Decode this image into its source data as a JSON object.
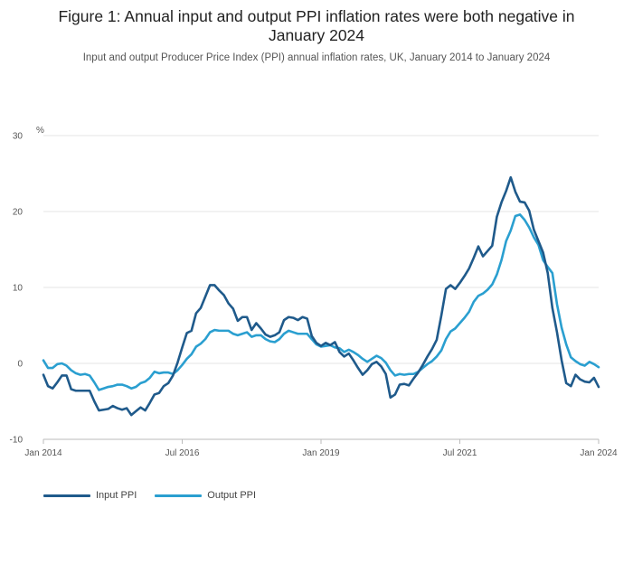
{
  "header": {
    "title_line1": "Figure 1: Annual input and output PPI inflation rates were both negative in",
    "title_line2": "January 2024",
    "subtitle": "Input and output Producer Price Index (PPI) annual inflation rates, UK, January 2014 to January 2024"
  },
  "colors": {
    "input": "#1f5a8b",
    "output": "#2a9fd0",
    "grid": "#e5e5e5",
    "axis": "#bbbbbb"
  },
  "chart_data": {
    "type": "line",
    "title": "Figure 1: Annual input and output PPI inflation rates were both negative in January 2024",
    "subtitle": "Input and output Producer Price Index (PPI) annual inflation rates, UK, January 2014 to January 2024",
    "ylabel": "%",
    "xlabel": "",
    "ylim": [
      -10,
      30
    ],
    "yticks": [
      -10,
      0,
      10,
      20,
      30
    ],
    "ytick_labels": [
      "-10",
      "0",
      "10",
      "20",
      "30"
    ],
    "x_start": "Jan 2014",
    "x_end": "Jan 2024",
    "x_count": 121,
    "xticks": [
      {
        "index": 0,
        "label": "Jan 2014"
      },
      {
        "index": 30,
        "label": "Jul 2016"
      },
      {
        "index": 60,
        "label": "Jan 2019"
      },
      {
        "index": 90,
        "label": "Jul 2021"
      },
      {
        "index": 120,
        "label": "Jan 2024"
      }
    ],
    "legend_position": "bottom-left",
    "grid": true,
    "series": [
      {
        "name": "Input PPI",
        "color": "#1f5a8b",
        "values": [
          -1.5,
          -3,
          -3.3,
          -2.5,
          -1.6,
          -1.6,
          -3.4,
          -3.6,
          -3.6,
          -3.6,
          -3.6,
          -5,
          -6.2,
          -6.1,
          -6,
          -5.6,
          -5.9,
          -6.1,
          -5.9,
          -6.8,
          -6.3,
          -5.8,
          -6.2,
          -5.2,
          -4.1,
          -3.9,
          -3,
          -2.6,
          -1.6,
          0.1,
          2.1,
          4,
          4.3,
          6.6,
          7.3,
          8.8,
          10.3,
          10.3,
          9.6,
          9,
          7.9,
          7.2,
          5.6,
          6.1,
          6.1,
          4.4,
          5.3,
          4.6,
          3.8,
          3.5,
          3.7,
          4.1,
          5.7,
          6.1,
          6,
          5.7,
          6.1,
          5.9,
          3.6,
          2.7,
          2.3,
          2.7,
          2.4,
          2.8,
          1.5,
          0.9,
          1.3,
          0.4,
          -0.6,
          -1.5,
          -0.9,
          -0.1,
          0.2,
          -0.4,
          -1.4,
          -4.5,
          -4.1,
          -2.8,
          -2.7,
          -2.9,
          -2,
          -1.2,
          -0.2,
          0.9,
          1.9,
          3.1,
          6.3,
          9.8,
          10.3,
          9.8,
          10.6,
          11.5,
          12.5,
          13.9,
          15.4,
          14.1,
          14.8,
          15.5,
          19.3,
          21.2,
          22.7,
          24.5,
          22.6,
          21.3,
          21.2,
          20.1,
          17.6,
          16.1,
          14.6,
          11.9,
          7.3,
          4.1,
          0.4,
          -2.6,
          -3,
          -1.5,
          -2.1,
          -2.4,
          -2.5,
          -1.9,
          -3.1
        ]
      },
      {
        "name": "Output PPI",
        "color": "#2a9fd0",
        "values": [
          0.4,
          -0.6,
          -0.6,
          -0.1,
          0,
          -0.3,
          -0.9,
          -1.3,
          -1.5,
          -1.4,
          -1.6,
          -2.5,
          -3.5,
          -3.3,
          -3.1,
          -3,
          -2.8,
          -2.8,
          -3,
          -3.3,
          -3.1,
          -2.6,
          -2.4,
          -1.9,
          -1.1,
          -1.3,
          -1.2,
          -1.2,
          -1.4,
          -0.9,
          -0.2,
          0.6,
          1.2,
          2.2,
          2.6,
          3.2,
          4.1,
          4.4,
          4.3,
          4.3,
          4.3,
          3.9,
          3.7,
          3.9,
          4.1,
          3.5,
          3.7,
          3.7,
          3.2,
          2.9,
          2.8,
          3.2,
          3.9,
          4.3,
          4.1,
          3.9,
          3.9,
          3.9,
          3.2,
          2.5,
          2.2,
          2.3,
          2.4,
          2.1,
          2,
          1.5,
          1.8,
          1.5,
          1.1,
          0.6,
          0.2,
          0.6,
          1,
          0.7,
          0.1,
          -0.9,
          -1.6,
          -1.4,
          -1.5,
          -1.4,
          -1.4,
          -1.1,
          -0.6,
          -0.1,
          0.3,
          0.9,
          1.7,
          3.2,
          4.2,
          4.6,
          5.3,
          6,
          6.8,
          8.1,
          8.9,
          9.2,
          9.7,
          10.4,
          11.7,
          13.6,
          16.1,
          17.5,
          19.4,
          19.6,
          18.9,
          17.9,
          16.6,
          15.6,
          13.6,
          12.7,
          11.9,
          7.8,
          4.7,
          2.5,
          0.8,
          0.3,
          -0.1,
          -0.3,
          0.2,
          -0.1,
          -0.5
        ]
      }
    ]
  }
}
